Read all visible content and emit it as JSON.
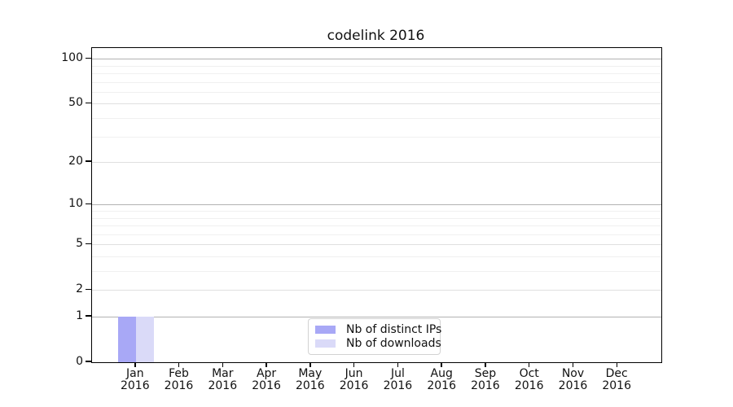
{
  "chart_data": {
    "type": "bar",
    "title": "codelink 2016",
    "categories": [
      "Jan 2016",
      "Feb 2016",
      "Mar 2016",
      "Apr 2016",
      "May 2016",
      "Jun 2016",
      "Jul 2016",
      "Aug 2016",
      "Sep 2016",
      "Oct 2016",
      "Nov 2016",
      "Dec 2016"
    ],
    "series": [
      {
        "name": "Nb of distinct IPs",
        "color": "#a8a8f6",
        "values": [
          1,
          0,
          0,
          0,
          0,
          0,
          0,
          0,
          0,
          0,
          0,
          0
        ]
      },
      {
        "name": "Nb of downloads",
        "color": "#dadaf8",
        "values": [
          1,
          0,
          0,
          0,
          0,
          0,
          0,
          0,
          0,
          0,
          0,
          0
        ]
      }
    ],
    "xlabel": "",
    "ylabel": "",
    "yscale": "log1p",
    "ylim": [
      0,
      118
    ],
    "yticks": [
      0,
      1,
      2,
      5,
      10,
      20,
      50,
      100
    ],
    "gridlines": {
      "dark": [
        1,
        10,
        100
      ],
      "light": [
        2,
        5,
        20,
        50
      ],
      "faint": [
        3,
        4,
        6,
        7,
        8,
        9,
        30,
        40,
        60,
        70,
        80,
        90
      ]
    },
    "grid": "horizontal",
    "legend_position": "lower center",
    "colors": {
      "background": "#ffffff",
      "text": "#111111",
      "grid_major": "#b2b2b2",
      "grid_minor": "#f0f0f0",
      "spine": "#000000"
    }
  }
}
